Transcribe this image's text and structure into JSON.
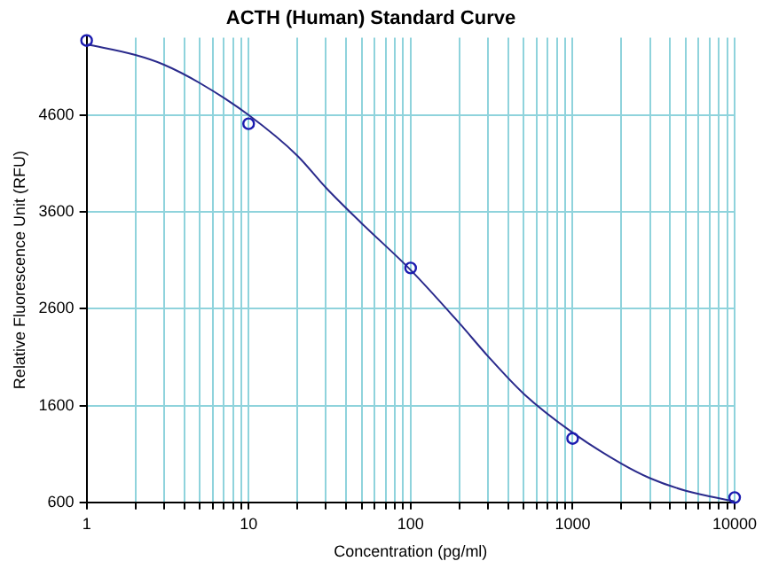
{
  "chart_data": {
    "type": "scatter",
    "title": "ACTH (Human) Standard Curve",
    "xlabel": "Concentration (pg/ml)",
    "ylabel": "Relative Fluorescence Unit (RFU)",
    "log": "x",
    "grid": true,
    "marker": "circle",
    "xlim": [
      1,
      10000
    ],
    "xticks": [
      1,
      10,
      100,
      1000,
      10000
    ],
    "ylim": [
      600,
      5400
    ],
    "yticks": [
      600,
      1600,
      2600,
      3600,
      4600
    ],
    "series": [
      {
        "color": "#1c1cb0",
        "x": [
          1,
          10,
          100,
          1000,
          10000
        ],
        "values": [
          5370,
          4510,
          3020,
          1260,
          650
        ]
      },
      {
        "type": "line",
        "color": "#2a2a8c",
        "marker": "none",
        "x": [
          1,
          2,
          3,
          5,
          10,
          20,
          30,
          50,
          100,
          200,
          300,
          500,
          1000,
          2000,
          3000,
          5000,
          10000
        ],
        "values": [
          5330,
          5220,
          5120,
          4930,
          4600,
          4180,
          3850,
          3480,
          3000,
          2450,
          2110,
          1720,
          1320,
          1000,
          850,
          720,
          610
        ]
      }
    ]
  }
}
